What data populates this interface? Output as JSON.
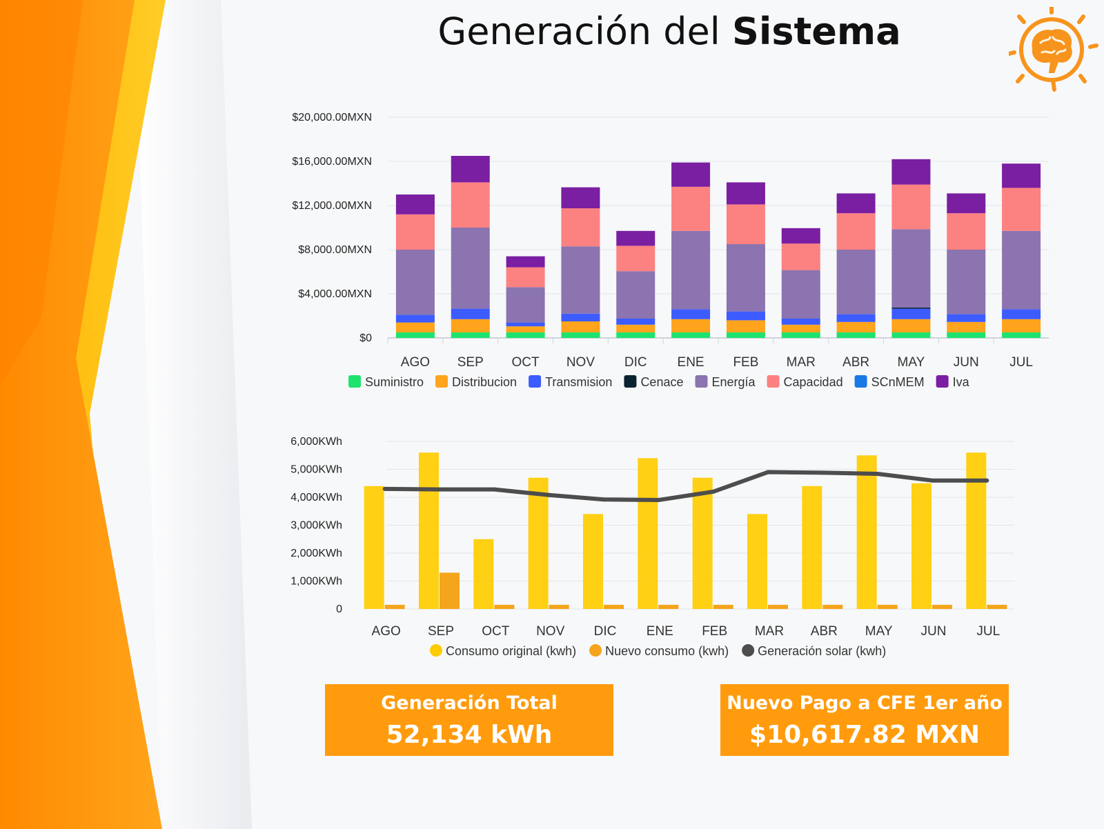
{
  "title": {
    "light": "Generación del",
    "bold": "Sistema"
  },
  "logo": {
    "icon": "brain-lightbulb-icon",
    "color": "#f7941d"
  },
  "colors": {
    "accent": "#ff9b0d",
    "orange_band": "#ff8c00",
    "yellow_band": "#ffc20e"
  },
  "chart_data": [
    {
      "type": "bar",
      "stacked": true,
      "categories": [
        "AGO",
        "SEP",
        "OCT",
        "NOV",
        "DIC",
        "ENE",
        "FEB",
        "MAR",
        "ABR",
        "MAY",
        "JUN",
        "JUL"
      ],
      "y_tick_labels": [
        "$0",
        "$4,000.00MXN",
        "$8,000.00MXN",
        "$12,000.00MXN",
        "$16,000.00MXN",
        "$20,000.00MXN"
      ],
      "ylim": [
        0,
        20000
      ],
      "grid": true,
      "legend_placement": "bottom",
      "series": [
        {
          "name": "Suministro",
          "color": "#1ee36e",
          "values": [
            500,
            500,
            500,
            500,
            500,
            500,
            500,
            500,
            500,
            500,
            500,
            500
          ]
        },
        {
          "name": "Distribucion",
          "color": "#ffa41c",
          "values": [
            900,
            1200,
            550,
            1000,
            700,
            1200,
            1100,
            700,
            950,
            1200,
            950,
            1200
          ]
        },
        {
          "name": "Transmision",
          "color": "#3c5cff",
          "values": [
            700,
            950,
            350,
            700,
            550,
            900,
            800,
            550,
            700,
            950,
            700,
            900
          ]
        },
        {
          "name": "Cenace",
          "color": "#0c2430",
          "values": [
            0,
            0,
            0,
            0,
            0,
            0,
            0,
            0,
            0,
            100,
            0,
            0
          ]
        },
        {
          "name": "Energía",
          "color": "#8b74b0",
          "values": [
            5900,
            7350,
            3200,
            6100,
            4300,
            7100,
            6100,
            4400,
            5850,
            7100,
            5850,
            7100
          ]
        },
        {
          "name": "Capacidad",
          "color": "#fc8181",
          "values": [
            3200,
            4100,
            1800,
            3450,
            2300,
            4000,
            3600,
            2400,
            3300,
            4050,
            3300,
            3900
          ]
        },
        {
          "name": "SCnMEM",
          "color": "#1979e6",
          "values": [
            0,
            0,
            0,
            0,
            0,
            0,
            0,
            0,
            0,
            0,
            0,
            0
          ]
        },
        {
          "name": "Iva",
          "color": "#7a1fa2",
          "values": [
            1800,
            2400,
            1000,
            1900,
            1350,
            2200,
            2000,
            1400,
            1800,
            2300,
            1800,
            2200
          ]
        }
      ]
    },
    {
      "type": "bar",
      "categories": [
        "AGO",
        "SEP",
        "OCT",
        "NOV",
        "DIC",
        "ENE",
        "FEB",
        "MAR",
        "ABR",
        "MAY",
        "JUN",
        "JUL"
      ],
      "y_tick_labels": [
        "0",
        "1,000KWh",
        "2,000KWh",
        "3,000KWh",
        "4,000KWh",
        "5,000KWh",
        "6,000KWh"
      ],
      "ylim": [
        0,
        6000
      ],
      "grid": true,
      "legend_placement": "bottom",
      "series": [
        {
          "name": "Consumo original (kwh)",
          "type": "bar",
          "color": "#ffcc00",
          "values": [
            4400,
            5600,
            2500,
            4700,
            3400,
            5400,
            4700,
            3400,
            4400,
            5500,
            4500,
            5600
          ]
        },
        {
          "name": "Nuevo consumo (kwh)",
          "type": "bar",
          "color": "#f4a51c",
          "values": [
            150,
            1300,
            150,
            150,
            150,
            150,
            150,
            150,
            150,
            150,
            150,
            150
          ]
        },
        {
          "name": "Generación solar (kwh)",
          "type": "line",
          "color": "#4d4d4d",
          "values": [
            4300,
            4280,
            4280,
            4080,
            3920,
            3900,
            4200,
            4900,
            4880,
            4840,
            4600,
            4600
          ]
        }
      ]
    }
  ],
  "boxes": {
    "generation": {
      "label": "Generación Total",
      "value": "52,134 kWh"
    },
    "payment": {
      "label": "Nuevo Pago a CFE 1er año",
      "value": "$10,617.82 MXN"
    }
  }
}
